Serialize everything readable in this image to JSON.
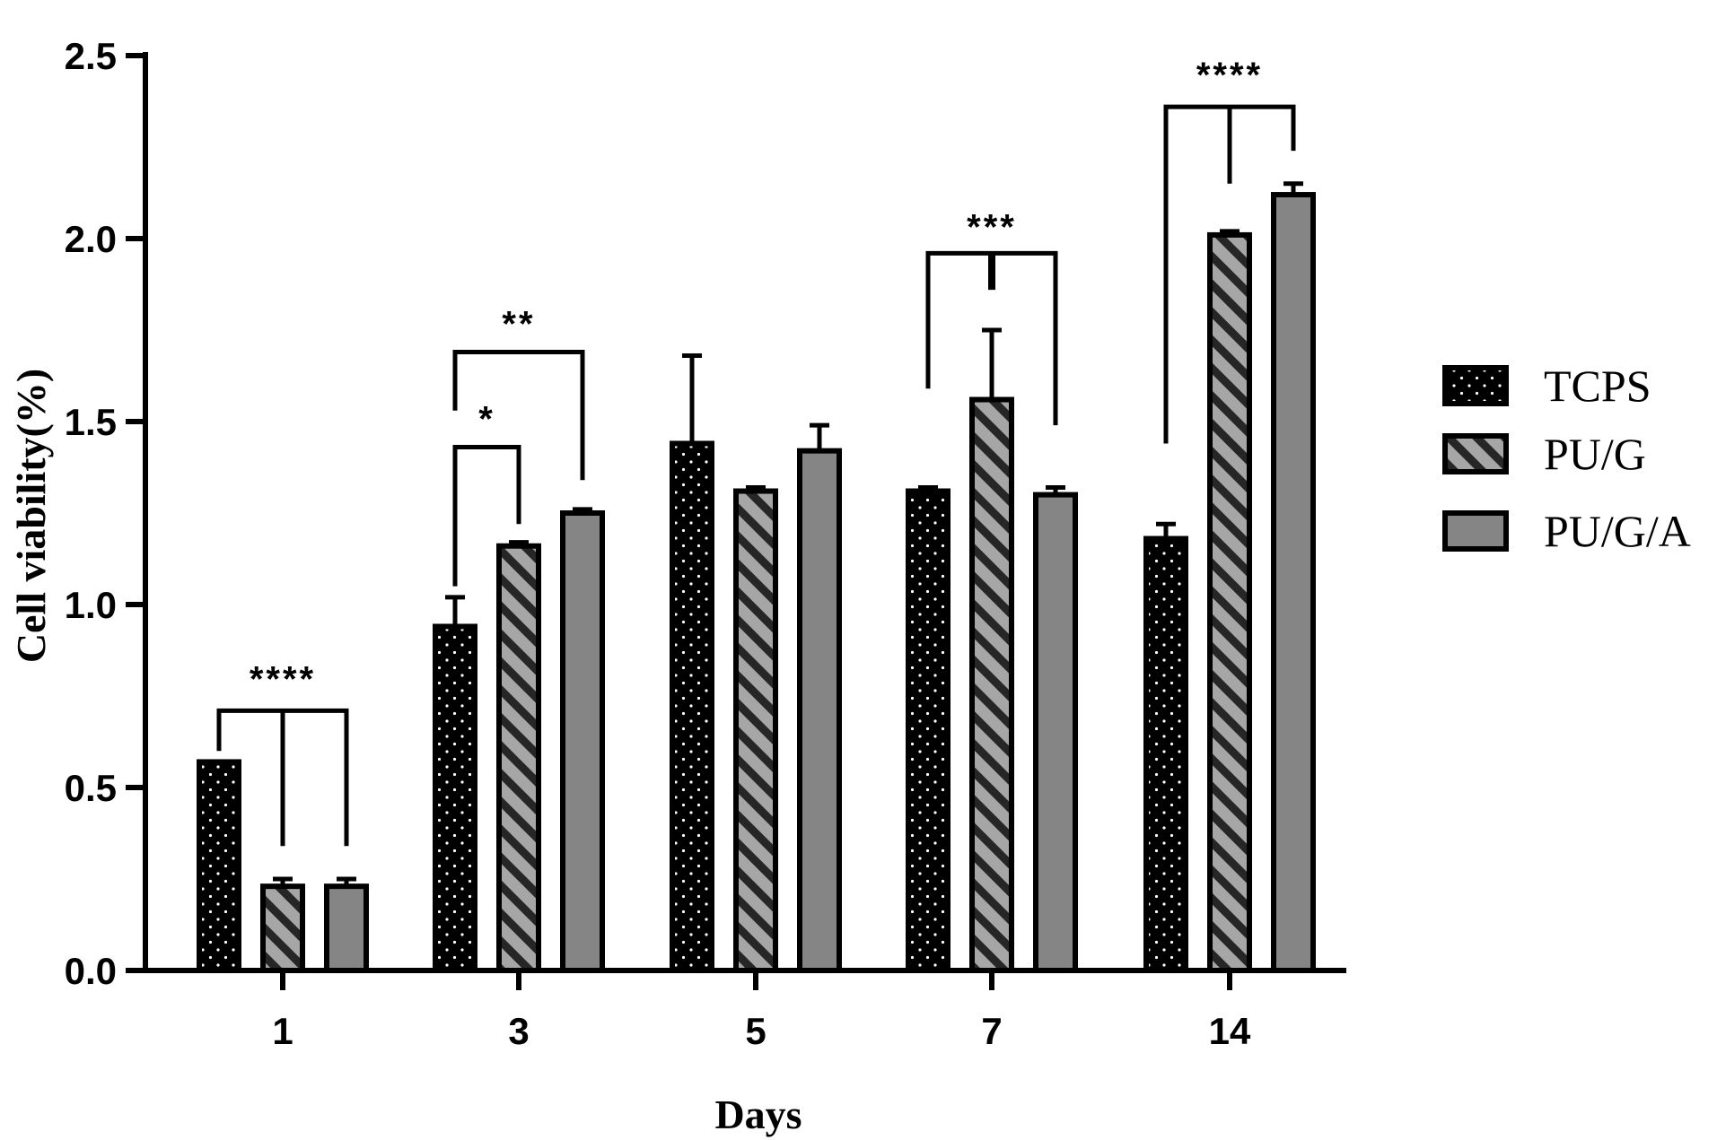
{
  "chart_data": {
    "type": "bar",
    "xlabel": "Days",
    "ylabel": "Cell viability(%)",
    "ylim": [
      0,
      2.5
    ],
    "yticks": [
      "0.0",
      "0.5",
      "1.0",
      "1.5",
      "2.0",
      "2.5"
    ],
    "categories": [
      "1",
      "3",
      "5",
      "7",
      "14"
    ],
    "legend_position": "right",
    "series": [
      {
        "name": "TCPS",
        "pattern": "dots",
        "color": "#000000",
        "values": [
          0.57,
          0.94,
          1.44,
          1.31,
          1.18
        ],
        "errors": [
          0.0,
          0.08,
          0.24,
          0.01,
          0.04
        ]
      },
      {
        "name": "PU/G",
        "pattern": "hatch",
        "color": "#9a9a9a",
        "values": [
          0.23,
          1.16,
          1.31,
          1.56,
          2.01
        ],
        "errors": [
          0.02,
          0.01,
          0.01,
          0.19,
          0.01
        ]
      },
      {
        "name": "PU/G/A",
        "pattern": "solid",
        "color": "#858585",
        "values": [
          0.23,
          1.25,
          1.42,
          1.3,
          2.12
        ],
        "errors": [
          0.02,
          0.01,
          0.07,
          0.02,
          0.03
        ]
      }
    ],
    "significance": [
      {
        "group": 0,
        "label": "****"
      },
      {
        "group": 1,
        "label": "*"
      },
      {
        "group": 1,
        "label": "**"
      },
      {
        "group": 3,
        "label": "***"
      },
      {
        "group": 4,
        "label": "****"
      }
    ]
  }
}
